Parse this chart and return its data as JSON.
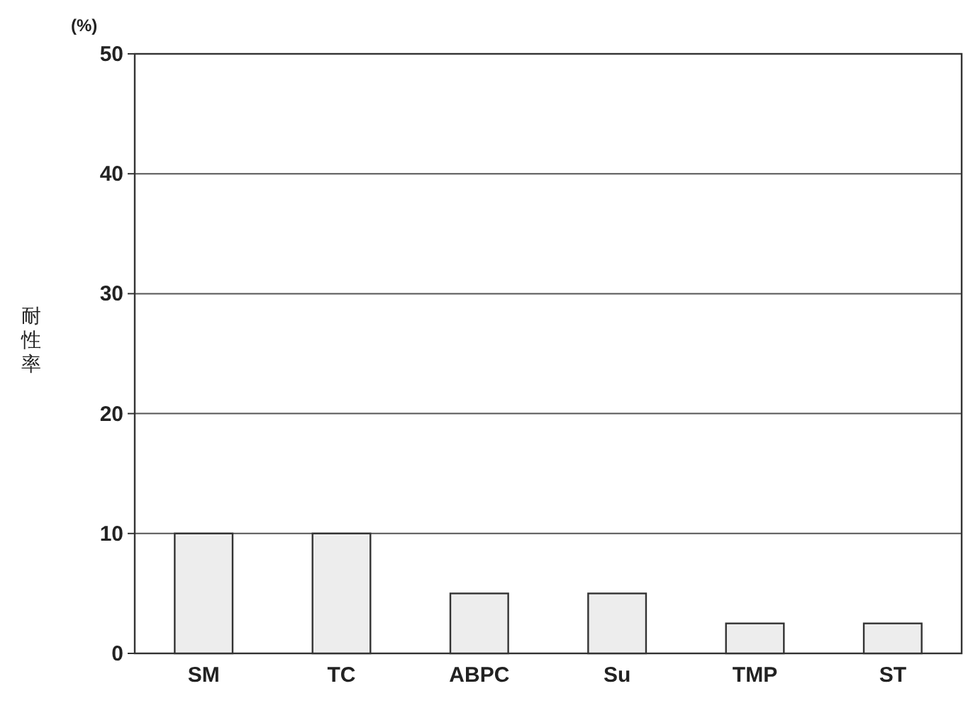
{
  "chart_data": {
    "type": "bar",
    "ylabel": "耐性率",
    "annotations": [
      "(%)"
    ],
    "categories": [
      "SM",
      "TC",
      "ABPC",
      "Su",
      "TMP",
      "ST"
    ],
    "values": [
      10,
      10,
      5,
      5,
      2.5,
      2.5
    ],
    "color": "#ededed",
    "ylim": [
      0,
      50
    ],
    "yticks": [
      0,
      10,
      20,
      30,
      40,
      50
    ],
    "grid": "y"
  }
}
